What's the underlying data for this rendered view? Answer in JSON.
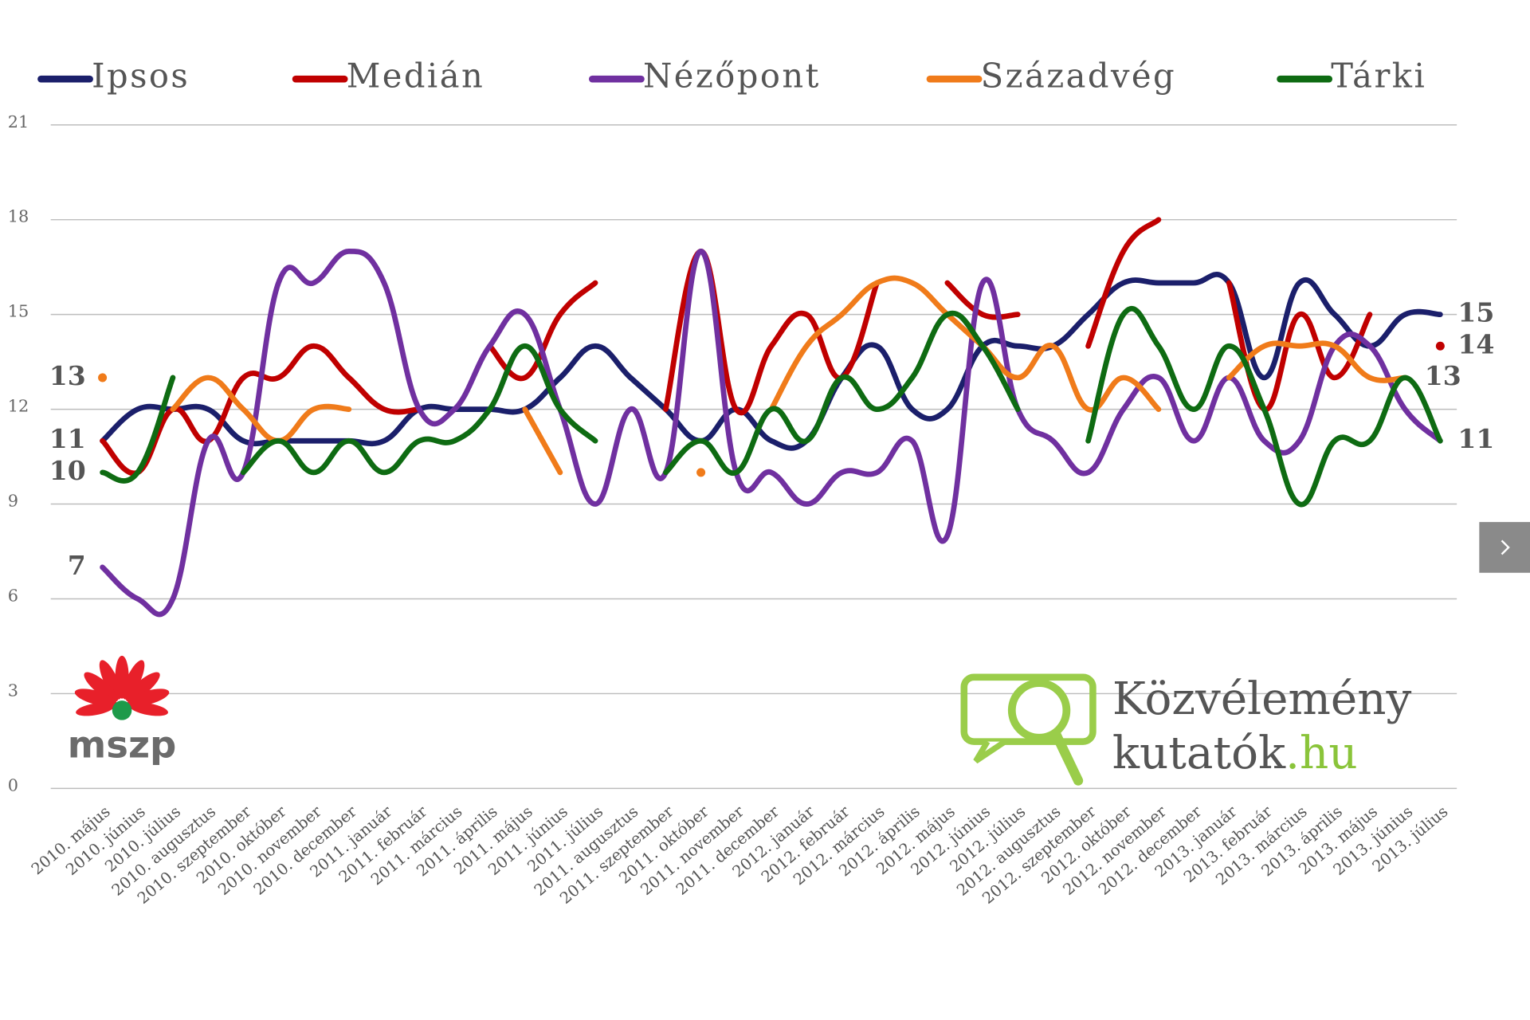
{
  "chart_data": {
    "type": "line",
    "categories": [
      "2010. május",
      "2010. június",
      "2010. július",
      "2010. augusztus",
      "2010. szeptember",
      "2010. október",
      "2010. november",
      "2010. december",
      "2011. január",
      "2011. február",
      "2011. március",
      "2011. április",
      "2011. május",
      "2011. június",
      "2011. július",
      "2011. augusztus",
      "2011. szeptember",
      "2011. október",
      "2011. november",
      "2011. december",
      "2012. január",
      "2012. február",
      "2012. március",
      "2012. április",
      "2012. május",
      "2012. június",
      "2012. július",
      "2012. augusztus",
      "2012. szeptember",
      "2012. október",
      "2012. november",
      "2012. december",
      "2013. január",
      "2013. február",
      "2013. március",
      "2013. április",
      "2013. május",
      "2013. június",
      "2013. július"
    ],
    "series": [
      {
        "name": "Ipsos",
        "color": "#1b1f6b",
        "values": [
          11,
          12,
          12,
          12,
          11,
          11,
          11,
          11,
          11,
          12,
          12,
          12,
          12,
          13,
          14,
          13,
          12,
          11,
          12,
          11,
          11,
          13,
          14,
          12,
          12,
          14,
          14,
          14,
          15,
          16,
          16,
          16,
          16,
          13,
          16,
          15,
          14,
          15,
          15
        ]
      },
      {
        "name": "Medián",
        "color": "#c00000",
        "values": [
          11,
          10,
          12,
          11,
          13,
          13,
          14,
          13,
          12,
          12,
          null,
          14,
          13,
          15,
          16,
          null,
          12,
          17,
          12,
          14,
          15,
          13,
          16,
          null,
          16,
          15,
          15,
          null,
          14,
          17,
          18,
          null,
          16,
          12,
          15,
          13,
          15,
          null,
          14
        ]
      },
      {
        "name": "Nézőpont",
        "color": "#7030a0",
        "values": [
          7,
          6,
          6,
          11,
          10,
          16,
          16,
          17,
          16,
          12,
          12,
          14,
          15,
          12,
          9,
          12,
          10,
          17,
          10,
          10,
          9,
          10,
          10,
          11,
          8,
          16,
          12,
          11,
          10,
          12,
          13,
          11,
          13,
          11,
          11,
          14,
          14,
          12,
          11
        ]
      },
      {
        "name": "Századvég",
        "color": "#f07b1a",
        "values": [
          13,
          null,
          12,
          13,
          12,
          11,
          12,
          12,
          null,
          null,
          null,
          null,
          12,
          10,
          null,
          null,
          null,
          10,
          null,
          12,
          14,
          15,
          16,
          16,
          15,
          14,
          13,
          14,
          12,
          13,
          12,
          null,
          13,
          14,
          14,
          14,
          13,
          13,
          null
        ]
      },
      {
        "name": "Tárki",
        "color": "#0e6b12",
        "values": [
          10,
          10,
          13,
          null,
          10,
          11,
          10,
          11,
          10,
          11,
          11,
          12,
          14,
          12,
          11,
          null,
          10,
          11,
          10,
          12,
          11,
          13,
          12,
          13,
          15,
          14,
          12,
          null,
          11,
          15,
          14,
          12,
          14,
          12,
          9,
          11,
          11,
          13,
          11
        ]
      }
    ],
    "ylim": [
      0,
      21
    ],
    "yticks": [
      0,
      3,
      6,
      9,
      12,
      15,
      18,
      21
    ],
    "grid": true,
    "legend": "top",
    "left_labels": [
      13,
      11,
      10,
      7
    ],
    "right_labels": [
      15,
      14,
      13,
      11
    ]
  },
  "logos": {
    "party": "mszp",
    "site_line1": "Közvélemény",
    "site_line2": "kutatók",
    "site_suffix": ".hu"
  }
}
